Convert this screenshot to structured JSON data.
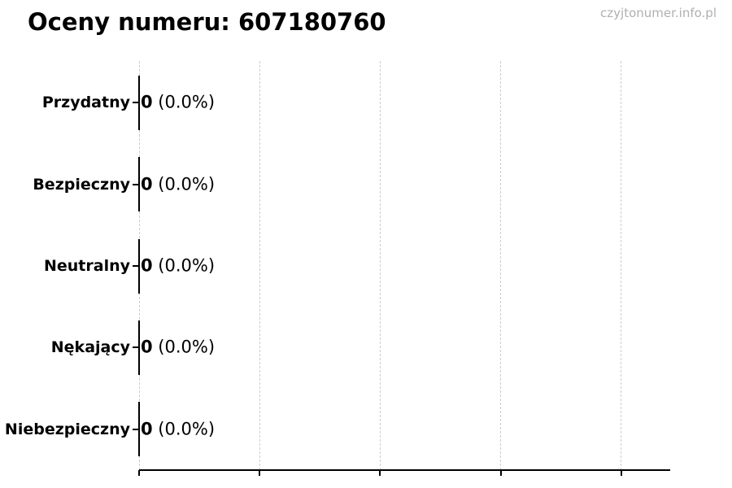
{
  "header": {
    "title": "Oceny numeru: 607180760",
    "watermark": "czyjtonumer.info.pl"
  },
  "chart_data": {
    "type": "bar",
    "orientation": "horizontal",
    "title": "Oceny numeru: 607180760",
    "categories": [
      "Przydatny",
      "Bezpieczny",
      "Neutralny",
      "Nękający",
      "Niebezpieczny"
    ],
    "values": [
      0,
      0,
      0,
      0,
      0
    ],
    "value_counts": [
      "0",
      "0",
      "0",
      "0",
      "0"
    ],
    "value_percents": [
      "(0.0%)",
      "(0.0%)",
      "(0.0%)",
      "(0.0%)",
      "(0.0%)"
    ],
    "xlabel": "",
    "ylabel": "",
    "xlim": [
      0,
      1.1
    ],
    "x_gridlines": [
      0,
      0.25,
      0.5,
      0.75,
      1.0
    ],
    "x_tick_labels": [],
    "grid": "vertical-dashed",
    "legend": "none",
    "colors": {
      "bar_edge": "#000000",
      "gridline": "#cccccc",
      "axis": "#000000",
      "text": "#000000",
      "watermark": "#b0b0b0",
      "background": "#ffffff"
    }
  }
}
